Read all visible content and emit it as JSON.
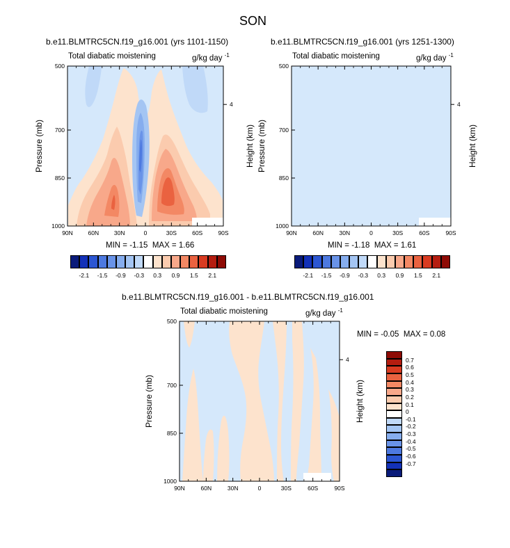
{
  "page": {
    "title": "SON"
  },
  "palette": {
    "background": "#d5e8fb",
    "blue_levels": [
      "#c0d9f8",
      "#a4c5f3",
      "#86adee",
      "#6993e8",
      "#4d79e0",
      "#2c56d2"
    ],
    "red_levels": [
      "#fde3cd",
      "#fbcbae",
      "#f8a88a",
      "#f38864",
      "#ea6240",
      "#d93b21"
    ],
    "blank": "#ffffff"
  },
  "chart_data": [
    {
      "type": "contour",
      "title": "b.e11.BLMTRC5CN.f19_g16.001 (yrs 1101-1150)",
      "left_label": "Total diabatic moistening",
      "units_label": "g/kg day",
      "units_superscript": "-1",
      "xlabel": "",
      "ylabel": "Pressure (mb)",
      "y2label": "Height (km)",
      "x_ticks": [
        "90N",
        "60N",
        "30N",
        "0",
        "30S",
        "60S",
        "90S"
      ],
      "x_range": [
        90,
        -90
      ],
      "y_ticks": [
        "500",
        "700",
        "850",
        "1000"
      ],
      "y_range": [
        500,
        1000
      ],
      "y2_ticks": [
        "4"
      ],
      "stats": {
        "min_label": "MIN =",
        "min": "-1.15",
        "max_label": "MAX =",
        "max": "1.66"
      },
      "colorbar": {
        "labels": [
          "-2.1",
          "-1.5",
          "-0.9",
          "-0.3",
          "0.3",
          "0.9",
          "1.5",
          "2.1"
        ],
        "colors": [
          "#0a1b7a",
          "#1331b8",
          "#2c56d2",
          "#4d79e0",
          "#6993e8",
          "#86adee",
          "#a4c5f3",
          "#c0d9f8",
          "#ffffff",
          "#fde3cd",
          "#fbcbae",
          "#f8a88a",
          "#f38864",
          "#ea6240",
          "#d93b21",
          "#b41d10",
          "#8e0b05"
        ]
      }
    },
    {
      "type": "contour",
      "title": "b.e11.BLMTRC5CN.f19_g16.001 (yrs 1251-1300)",
      "left_label": "Total diabatic moistening",
      "units_label": "g/kg day",
      "units_superscript": "-1",
      "xlabel": "",
      "ylabel": "Pressure (mb)",
      "y2label": "Height (km)",
      "x_ticks": [
        "90N",
        "60N",
        "30N",
        "0",
        "30S",
        "60S",
        "90S"
      ],
      "x_range": [
        90,
        -90
      ],
      "y_ticks": [
        "500",
        "700",
        "850",
        "1000"
      ],
      "y_range": [
        500,
        1000
      ],
      "y2_ticks": [
        "4"
      ],
      "stats": {
        "min_label": "MIN =",
        "min": "-1.18",
        "max_label": "MAX =",
        "max": "1.61"
      },
      "colorbar": {
        "labels": [
          "-2.1",
          "-1.5",
          "-0.9",
          "-0.3",
          "0.3",
          "0.9",
          "1.5",
          "2.1"
        ],
        "colors": [
          "#0a1b7a",
          "#1331b8",
          "#2c56d2",
          "#4d79e0",
          "#6993e8",
          "#86adee",
          "#a4c5f3",
          "#c0d9f8",
          "#ffffff",
          "#fde3cd",
          "#fbcbae",
          "#f8a88a",
          "#f38864",
          "#ea6240",
          "#d93b21",
          "#b41d10",
          "#8e0b05"
        ]
      }
    },
    {
      "type": "contour",
      "title": "b.e11.BLMTRC5CN.f19_g16.001 - b.e11.BLMTRC5CN.f19_g16.001",
      "left_label": "Total diabatic moistening",
      "units_label": "g/kg day",
      "units_superscript": "-1",
      "xlabel": "",
      "ylabel": "Pressure (mb)",
      "y2label": "Height (km)",
      "x_ticks": [
        "90N",
        "60N",
        "30N",
        "0",
        "30S",
        "60S",
        "90S"
      ],
      "x_range": [
        90,
        -90
      ],
      "y_ticks": [
        "500",
        "700",
        "850",
        "1000"
      ],
      "y_range": [
        500,
        1000
      ],
      "y2_ticks": [
        "4"
      ],
      "stats": {
        "min_label": "MIN =",
        "min": "-0.05",
        "max_label": "MAX =",
        "max": "0.08"
      },
      "colorbar": {
        "labels": [
          "0.7",
          "0.6",
          "0.5",
          "0.4",
          "0.3",
          "0.2",
          "0.1",
          "0",
          "-0.1",
          "-0.2",
          "-0.3",
          "-0.4",
          "-0.5",
          "-0.6",
          "-0.7"
        ],
        "colors": [
          "#8e0b05",
          "#b41d10",
          "#d93b21",
          "#ea6240",
          "#f38864",
          "#f8a88a",
          "#fbcbae",
          "#fde3cd",
          "#ffffff",
          "#c0d9f8",
          "#a4c5f3",
          "#86adee",
          "#6993e8",
          "#4d79e0",
          "#2c56d2",
          "#1331b8",
          "#0a1b7a"
        ]
      }
    }
  ]
}
